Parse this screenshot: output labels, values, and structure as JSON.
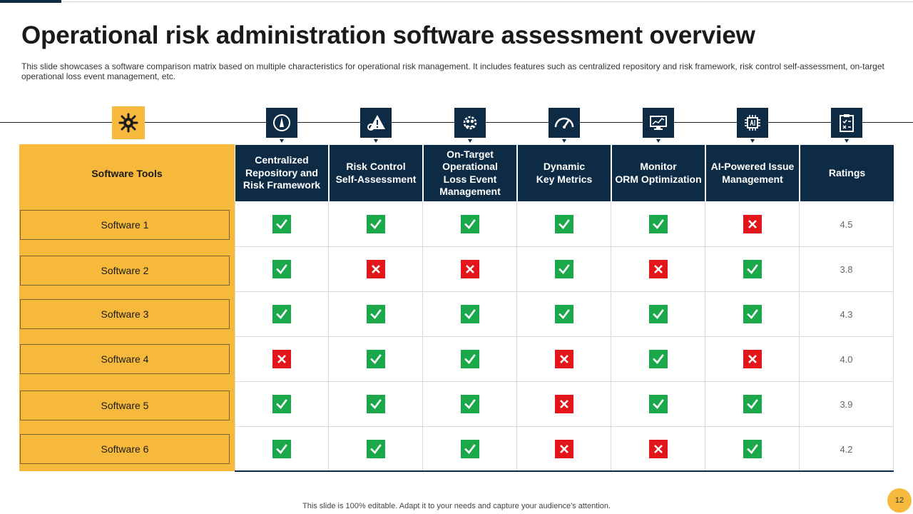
{
  "title": "Operational risk administration software assessment overview",
  "subtitle": "This slide showcases a software comparison matrix based on multiple characteristics for operational risk management. It includes features such as centralized repository and risk framework, risk control self-assessment, on-target operational loss event management, etc.",
  "icons": [
    "gear-bug-icon",
    "gauge-icon",
    "warning-gears-icon",
    "people-cog-icon",
    "speedometer-icon",
    "monitor-chart-icon",
    "ai-chip-icon",
    "checklist-icon"
  ],
  "table": {
    "tools_header": "Software Tools",
    "columns": [
      "Centralized Repository and Risk Framework",
      "Risk Control Self-Assessment",
      "On-Target Operational Loss Event Management",
      "Dynamic Key Metrics",
      "Monitor ORM Optimization",
      "AI-Powered Issue Management",
      "Ratings"
    ],
    "column_lines": [
      [
        "Centralized",
        "Repository and",
        "Risk Framework"
      ],
      [
        "Risk Control",
        "Self-Assessment"
      ],
      [
        "On-Target",
        "Operational",
        "Loss Event",
        "Management"
      ],
      [
        "Dynamic",
        "Key Metrics"
      ],
      [
        "Monitor",
        "ORM Optimization"
      ],
      [
        "AI-Powered Issue",
        "Management"
      ],
      [
        "Ratings"
      ]
    ],
    "rows": [
      {
        "name": "Software 1",
        "features": [
          true,
          true,
          true,
          true,
          true,
          false
        ],
        "rating": "4.5"
      },
      {
        "name": "Software 2",
        "features": [
          true,
          false,
          false,
          true,
          false,
          true
        ],
        "rating": "3.8"
      },
      {
        "name": "Software 3",
        "features": [
          true,
          true,
          true,
          true,
          true,
          true
        ],
        "rating": "4.3"
      },
      {
        "name": "Software 4",
        "features": [
          false,
          true,
          true,
          false,
          true,
          false
        ],
        "rating": "4.0"
      },
      {
        "name": "Software 5",
        "features": [
          true,
          true,
          true,
          false,
          true,
          true
        ],
        "rating": "3.9"
      },
      {
        "name": "Software 6",
        "features": [
          true,
          true,
          true,
          false,
          false,
          true
        ],
        "rating": "4.2"
      }
    ]
  },
  "colors": {
    "navy": "#0d2b45",
    "accent": "#f6b93b",
    "check": "#1aa84a",
    "cross": "#e3161c"
  },
  "footer": "This slide is 100% editable. Adapt it to your needs and capture your audience's attention.",
  "page_number": "12"
}
